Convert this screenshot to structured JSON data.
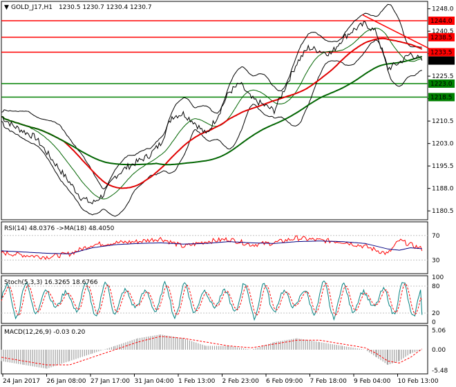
{
  "chart_data": {
    "type": "line",
    "window_header": {
      "symbol_timeframe": "GOLD_J17,H1",
      "ohlc": "1230.5 1230.7 1230.4 1230.7"
    },
    "x_tick_labels": [
      "24 Jan 2017",
      "26 Jan 08:00",
      "27 Jan 17:00",
      "31 Jan 04:00",
      "1 Feb 13:00",
      "2 Feb 23:00",
      "6 Feb 09:00",
      "7 Feb 18:00",
      "9 Feb 04:00",
      "10 Feb 13:00"
    ],
    "price_panel": {
      "y_range": [
        1178,
        1250
      ],
      "y_ticks": [
        "1248.0",
        "1240.5",
        "1233.0",
        "1225.5",
        "1218.0",
        "1210.5",
        "1203.0",
        "1195.5",
        "1188.0",
        "1180.5"
      ],
      "x": [
        0,
        4,
        8,
        12,
        16,
        20,
        24,
        28,
        32,
        36,
        40,
        44,
        48,
        52,
        56,
        60,
        64,
        68,
        72,
        76,
        80,
        84,
        88,
        92,
        96,
        100,
        104,
        108,
        112,
        116,
        120,
        124,
        128,
        132,
        136,
        140,
        144,
        148
      ],
      "close": [
        1212,
        1209,
        1207,
        1205,
        1200,
        1195,
        1190,
        1185,
        1183,
        1186,
        1192,
        1195,
        1197,
        1199,
        1203,
        1212,
        1213,
        1210,
        1206,
        1212,
        1220,
        1223,
        1218,
        1216,
        1214,
        1222,
        1230,
        1235,
        1234,
        1233,
        1238,
        1241,
        1243,
        1240,
        1228,
        1230,
        1233,
        1230.7
      ],
      "price_labels": [
        {
          "text": "1244.0",
          "value": 1244.0,
          "color": "#ff0000"
        },
        {
          "text": "1238.5",
          "value": 1238.5,
          "color": "#ff0000"
        },
        {
          "text": "1233.5",
          "value": 1233.5,
          "color": "#ff0000"
        },
        {
          "text": "1230.7",
          "value": 1230.7,
          "color": "#000000"
        },
        {
          "text": "1223.0",
          "value": 1223.0,
          "color": "#008000"
        },
        {
          "text": "1218.5",
          "value": 1218.5,
          "color": "#008000"
        }
      ],
      "horizontal_levels": [
        {
          "value": 1244.0,
          "color": "#ff0000"
        },
        {
          "value": 1238.5,
          "color": "#ff0000"
        },
        {
          "value": 1233.5,
          "color": "#ff0000"
        },
        {
          "value": 1223.0,
          "color": "#008000"
        },
        {
          "value": 1218.5,
          "color": "#008000"
        }
      ],
      "trendline": {
        "from": [
          127,
          1246
        ],
        "to": [
          152,
          1234
        ],
        "color": "#ff0000"
      },
      "colors": {
        "price": "#000000",
        "ma_red": "#e00000",
        "ma_green": "#006400",
        "bands": "#000000",
        "ma_fast": "#006400"
      }
    },
    "rsi_panel": {
      "header": "RSI(14) 48.0376 ->MA(18) 48.4050",
      "y_range": [
        10,
        90
      ],
      "y_ticks": [
        "70",
        "30"
      ],
      "levels": [
        70,
        30
      ],
      "x": [
        0,
        8,
        16,
        24,
        32,
        40,
        48,
        56,
        64,
        72,
        80,
        88,
        96,
        104,
        112,
        120,
        128,
        136,
        140,
        144,
        148
      ],
      "rsi": [
        42,
        38,
        35,
        40,
        55,
        58,
        60,
        65,
        52,
        60,
        64,
        55,
        58,
        66,
        62,
        60,
        52,
        40,
        62,
        55,
        48
      ],
      "ma": [
        45,
        43,
        41,
        40,
        50,
        55,
        57,
        58,
        56,
        57,
        60,
        58,
        57,
        60,
        61,
        60,
        57,
        48,
        46,
        50,
        48.4
      ],
      "colors": {
        "rsi": "#ff0000",
        "ma": "#000080"
      }
    },
    "stoch_panel": {
      "header": "Stoch(5,3,3) 16.3265 18.6766",
      "y_range": [
        0,
        100
      ],
      "y_ticks": [
        "100",
        "80",
        "20",
        "0"
      ],
      "levels": [
        80,
        20
      ],
      "colors": {
        "main": "#008080",
        "signal": "#ff0000"
      }
    },
    "macd_panel": {
      "header": "MACD(12,26,9) -0.03 0.20",
      "y_range": [
        -6,
        6
      ],
      "y_ticks": [
        "5.06",
        "0.00",
        "-5.48"
      ],
      "x": [
        0,
        8,
        16,
        24,
        32,
        40,
        48,
        56,
        64,
        72,
        80,
        88,
        96,
        104,
        112,
        120,
        128,
        132,
        136,
        140,
        144,
        148
      ],
      "histogram": [
        -3,
        -4,
        -5,
        -3,
        -1,
        1,
        3,
        4,
        3,
        1,
        1,
        0,
        2,
        3,
        2,
        1,
        0,
        -2,
        -4,
        -3,
        -1,
        -0.03
      ],
      "signal": [
        -2,
        -3,
        -4,
        -4,
        -2,
        0,
        2,
        3.5,
        3,
        2,
        1,
        0.5,
        1.5,
        2.5,
        2.5,
        1.5,
        0.5,
        -1,
        -3,
        -3.5,
        -2,
        0.2
      ],
      "colors": {
        "histogram": "#a0a0a0",
        "signal": "#ff0000"
      }
    }
  }
}
